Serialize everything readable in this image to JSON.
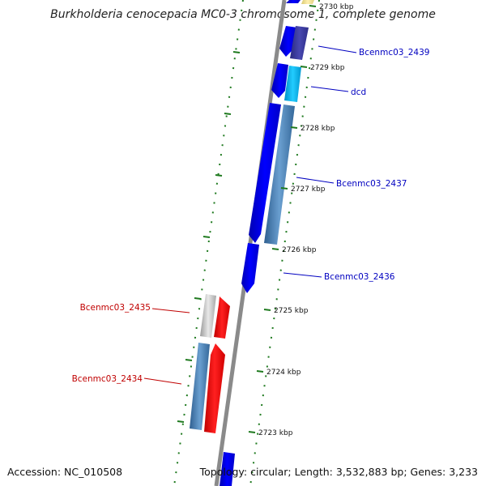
{
  "title": "Burkholderia cenocepacia MC0-3 chromosome 1, complete genome",
  "footer": {
    "accession": "Accession: NC_010508",
    "summary": "Topology: circular; Length: 3,532,883 bp; Genes: 3,233"
  },
  "colors": {
    "backbone": "#8a8a8a",
    "ruler": "#1f7a1f",
    "forward_label": "#0000c0",
    "reverse_label": "#c00000",
    "cds_blue": "#0000ff",
    "cds_dark_blue": "#3a3aa0",
    "cds_cyan": "#00b0e8",
    "cds_steel": "#4a7fb5",
    "cds_gray": "#c8c8c8",
    "cds_red": "#ff0000",
    "cds_yellow": "#f0e08a"
  },
  "ticks": [
    {
      "id": "t2730",
      "label": "2730 kbp"
    },
    {
      "id": "t2729",
      "label": "2729 kbp"
    },
    {
      "id": "t2728",
      "label": "2728 kbp"
    },
    {
      "id": "t2727",
      "label": "2727 kbp"
    },
    {
      "id": "t2726",
      "label": "2726 kbp"
    },
    {
      "id": "t2725",
      "label": "2725 kbp"
    },
    {
      "id": "t2724",
      "label": "2724 kbp"
    },
    {
      "id": "t2723",
      "label": "2723 kbp"
    }
  ],
  "gene_labels": [
    {
      "id": "g2439",
      "text": "Bcenmc03_2439",
      "strand": "forward"
    },
    {
      "id": "gdcd",
      "text": "dcd",
      "strand": "forward"
    },
    {
      "id": "g2437",
      "text": "Bcenmc03_2437",
      "strand": "forward"
    },
    {
      "id": "g2436",
      "text": "Bcenmc03_2436",
      "strand": "forward"
    },
    {
      "id": "g2435",
      "text": "Bcenmc03_2435",
      "strand": "reverse"
    },
    {
      "id": "g2434",
      "text": "Bcenmc03_2434",
      "strand": "reverse"
    }
  ]
}
